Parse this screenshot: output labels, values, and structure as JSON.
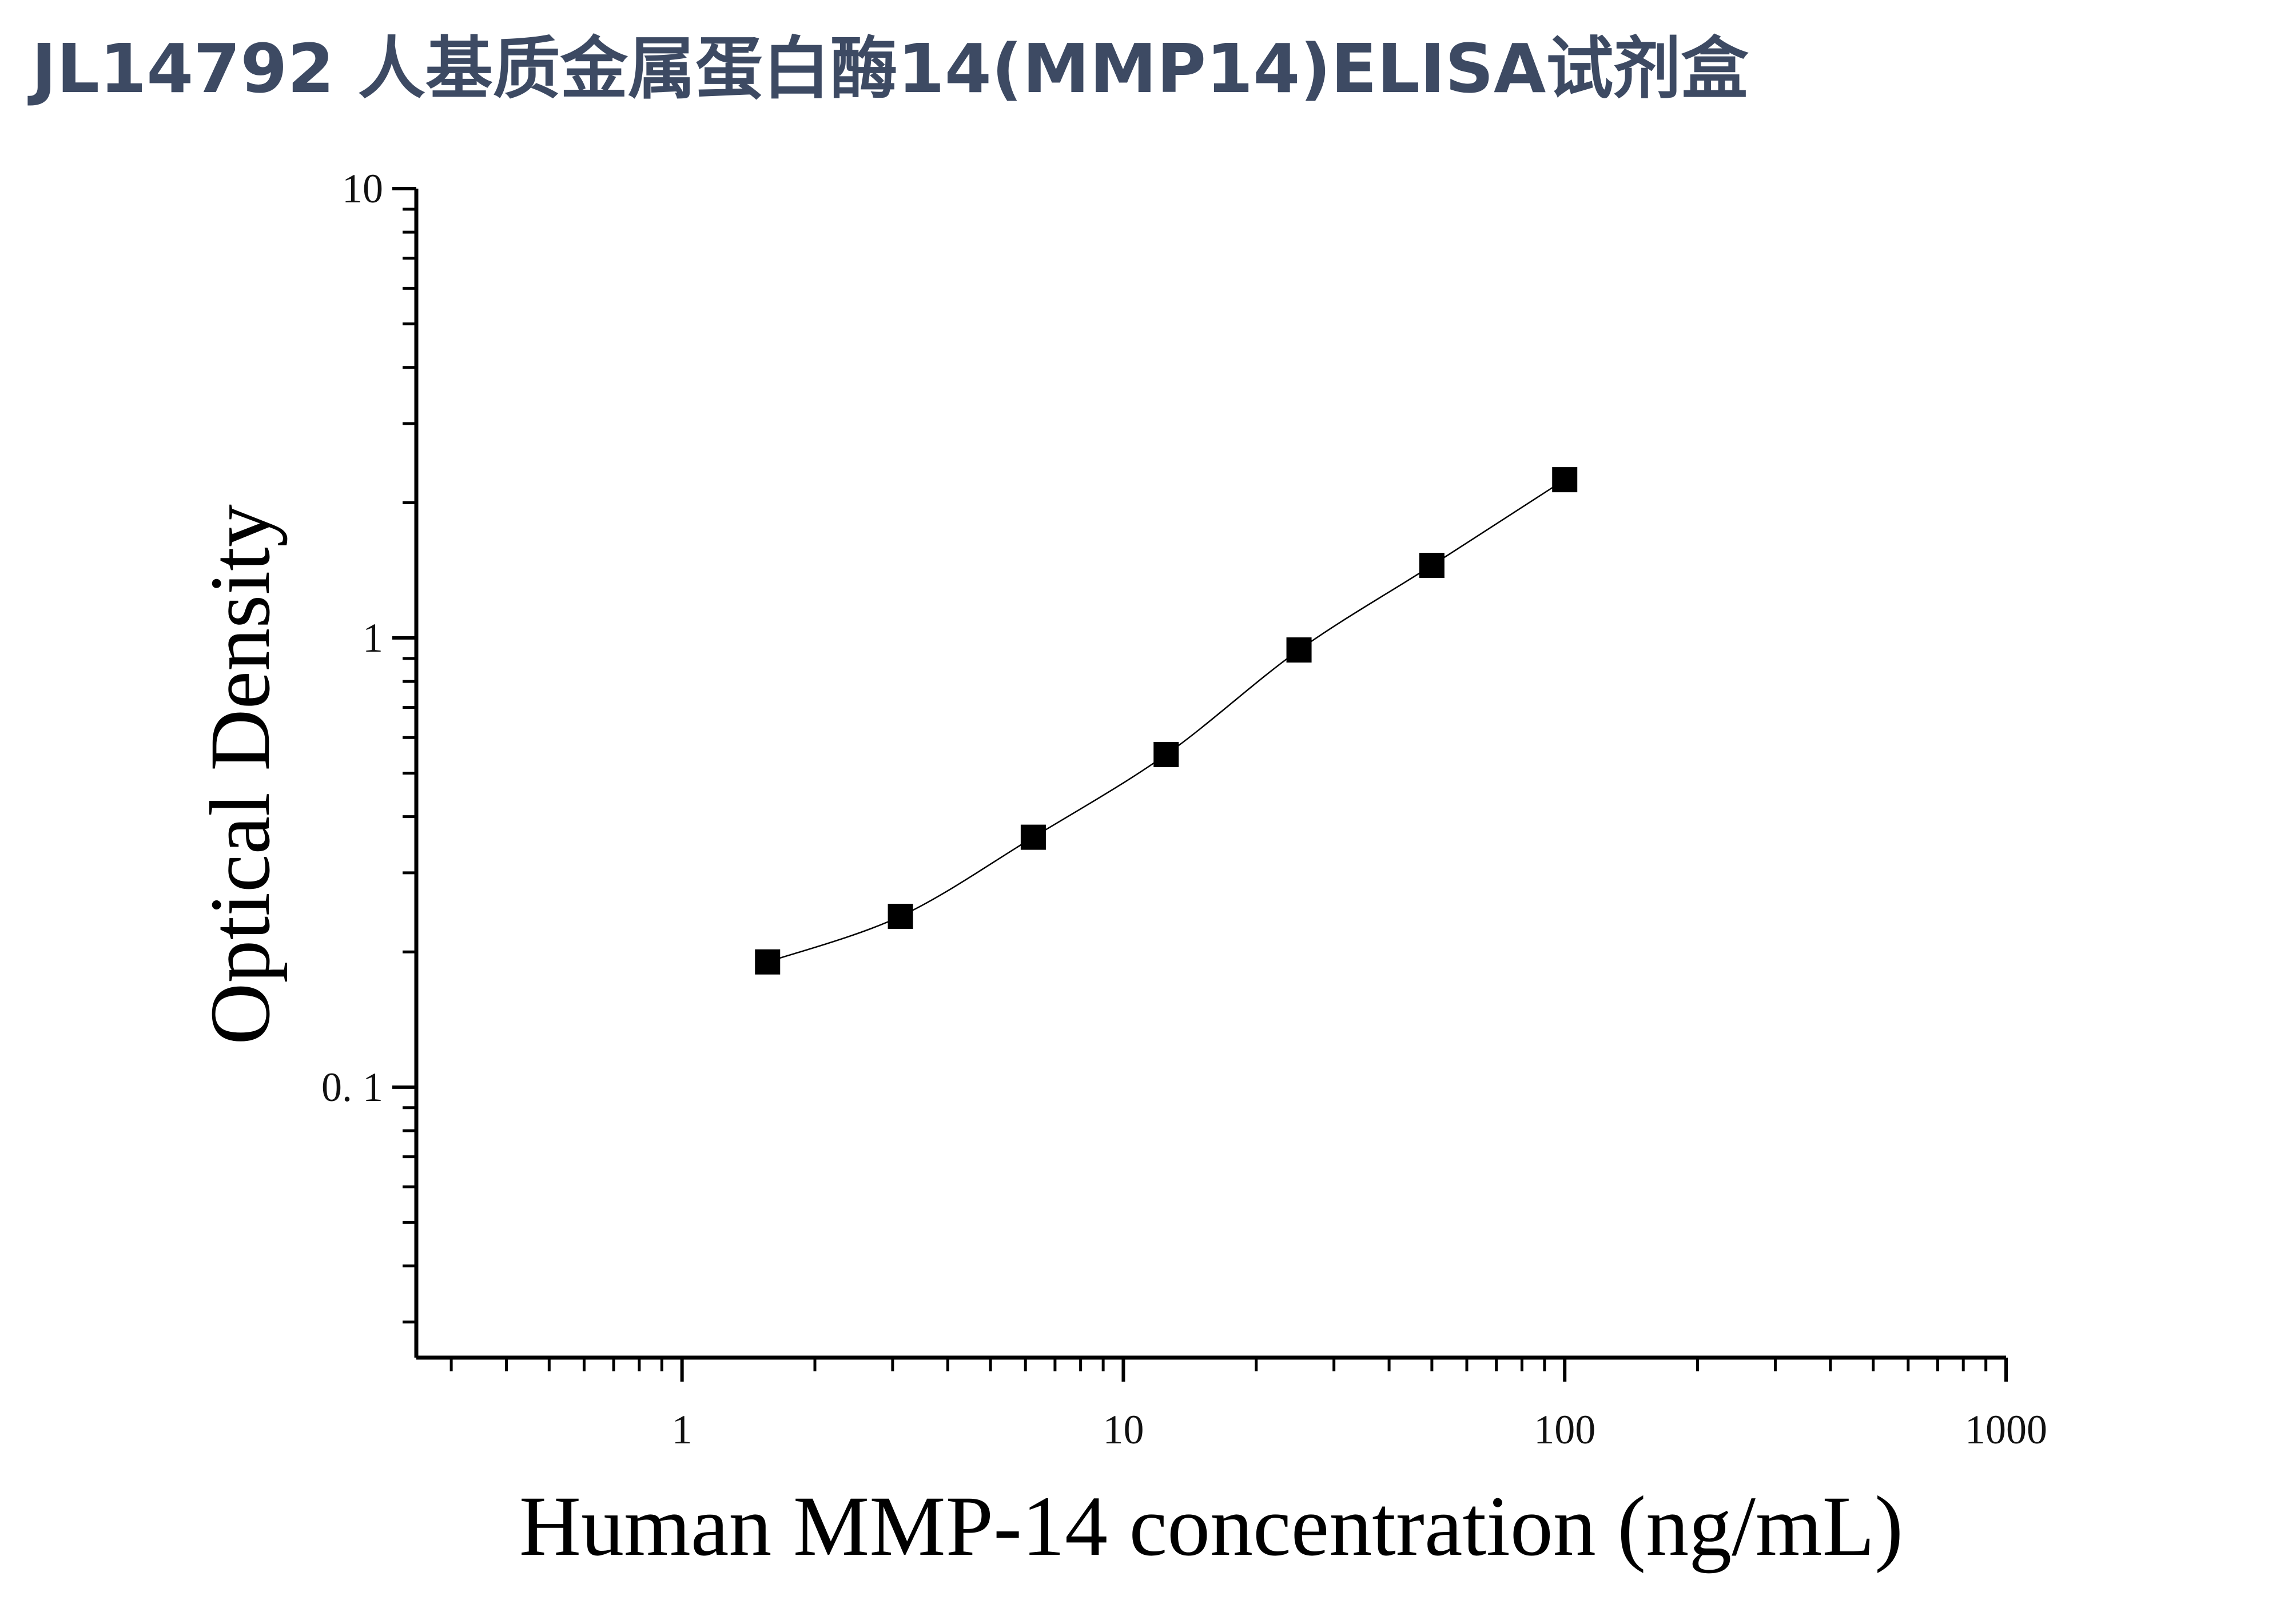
{
  "chart_data": {
    "type": "scatter",
    "title": "JL14792 人基质金属蛋白酶14(MMP14)ELISA试剂盒",
    "xlabel": "Human MMP-14 concentration (ng/mL)",
    "ylabel": "Optical Density",
    "x_scale": "log",
    "y_scale": "log",
    "xlim": [
      0.25,
      1000
    ],
    "ylim": [
      0.025,
      10
    ],
    "x_ticks": [
      1,
      10,
      100,
      1000
    ],
    "x_tick_labels": [
      "1",
      "10",
      "100",
      "1000"
    ],
    "y_ticks": [
      0.1,
      1,
      10
    ],
    "y_tick_labels": [
      "0. 1",
      "1",
      "10"
    ],
    "grid": false,
    "legend": "none",
    "series": [
      {
        "x": [
          1.5625,
          3.125,
          6.25,
          12.5,
          25,
          50,
          100
        ],
        "y": [
          0.19,
          0.24,
          0.36,
          0.55,
          0.94,
          1.45,
          2.25
        ],
        "marker": "square",
        "line": "fitted-curve"
      }
    ],
    "colors": {
      "marker": "#000000",
      "axis": "#000000",
      "title": "#3d4a63"
    }
  }
}
